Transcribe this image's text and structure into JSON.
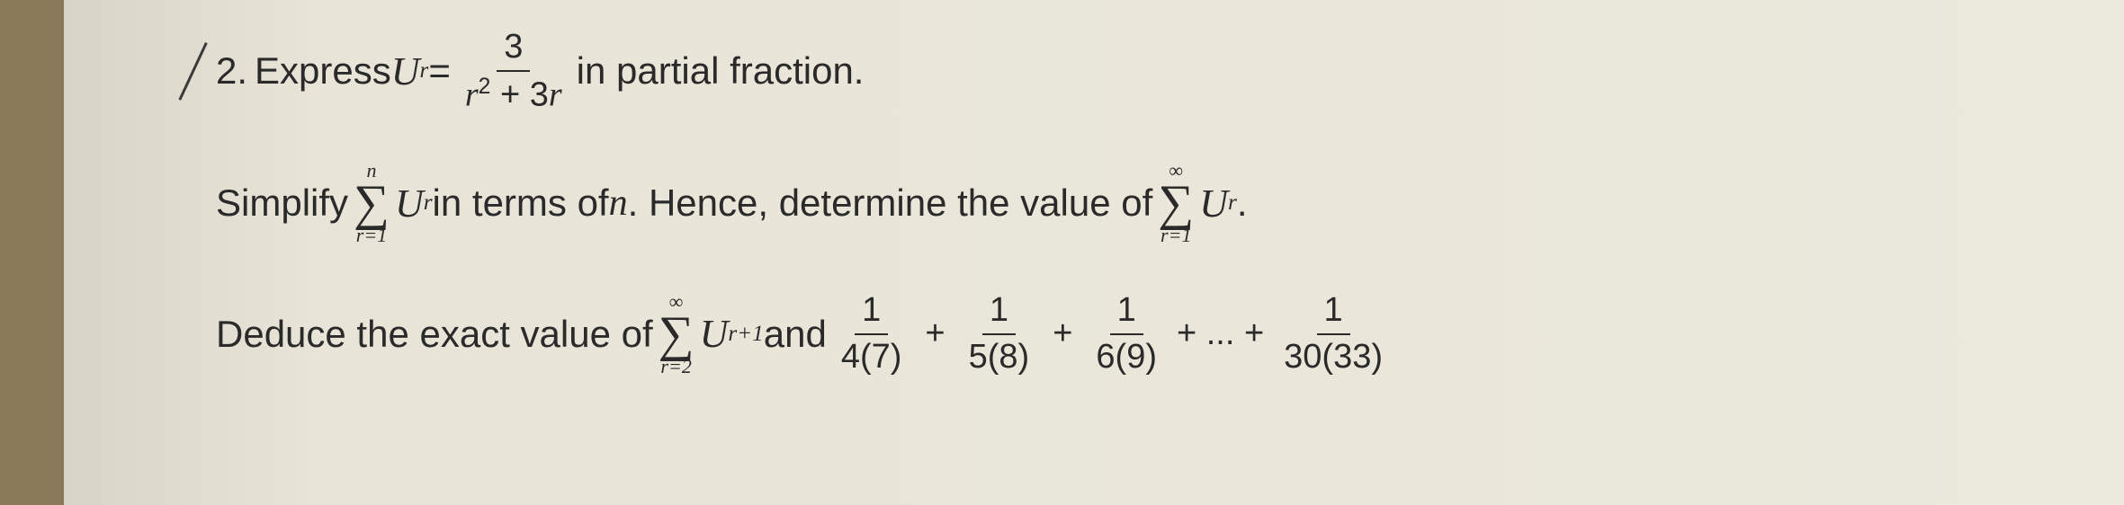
{
  "problem": {
    "number": "2.",
    "line1": {
      "pre_text": "Express ",
      "var_U": "U",
      "var_sub_r": "r",
      "equals": " = ",
      "fraction_num": "3",
      "fraction_den_r": "r",
      "fraction_den_exp": "2",
      "fraction_den_plus": " + 3",
      "fraction_den_r2": "r",
      "post_text": " in partial fraction."
    },
    "line2": {
      "pre_text": "Simplify ",
      "sigma1_top": "n",
      "sigma1_bottom": "r=1",
      "var_U1": "U",
      "var_sub_r1": "r",
      "mid_text1": " in terms of ",
      "var_n": "n",
      "mid_text2": ". Hence, determine the value of ",
      "sigma2_top": "∞",
      "sigma2_bottom": "r=1",
      "var_U2": "U",
      "var_sub_r2": "r",
      "period": " ."
    },
    "line3": {
      "pre_text": "Deduce the exact value of ",
      "sigma_top": "∞",
      "sigma_bottom": "r=2",
      "var_U": "U",
      "var_sub": "r+1",
      "and_text": " and ",
      "f1_num": "1",
      "f1_den": "4(7)",
      "plus1": "+",
      "f2_num": "1",
      "f2_den": "5(8)",
      "plus2": "+",
      "f3_num": "1",
      "f3_den": "6(9)",
      "plus3": "+ ... +",
      "f4_num": "1",
      "f4_den": "30(33)"
    }
  },
  "colors": {
    "text": "#2a2a2a",
    "paper": "#e8e4d8",
    "edge": "#8a7a5a"
  }
}
